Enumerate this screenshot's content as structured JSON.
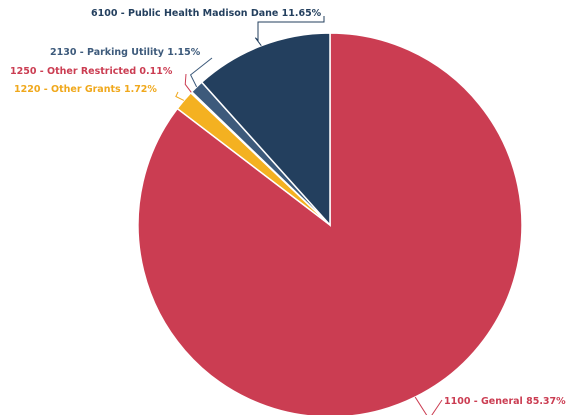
{
  "chart_data": {
    "type": "pie",
    "title": "",
    "slices": [
      {
        "label": "1100 - General 85.37%",
        "value": 85.37,
        "color": "#cb3d52"
      },
      {
        "label": "1220 - Other Grants 1.72%",
        "value": 1.72,
        "color": "#f4b121"
      },
      {
        "label": "1250 - Other Restricted 0.11%",
        "value": 0.11,
        "color": "#cb3d52"
      },
      {
        "label": "2130 - Parking Utility 1.15%",
        "value": 1.15,
        "color": "#3d5a7b"
      },
      {
        "label": "6100 - Public Health Madison Dane 11.65%",
        "value": 11.65,
        "color": "#233f5e"
      }
    ],
    "label_colors": [
      "#cb3d52",
      "#f0a81c",
      "#cb3d52",
      "#3d5a7b",
      "#233f5e"
    ]
  }
}
